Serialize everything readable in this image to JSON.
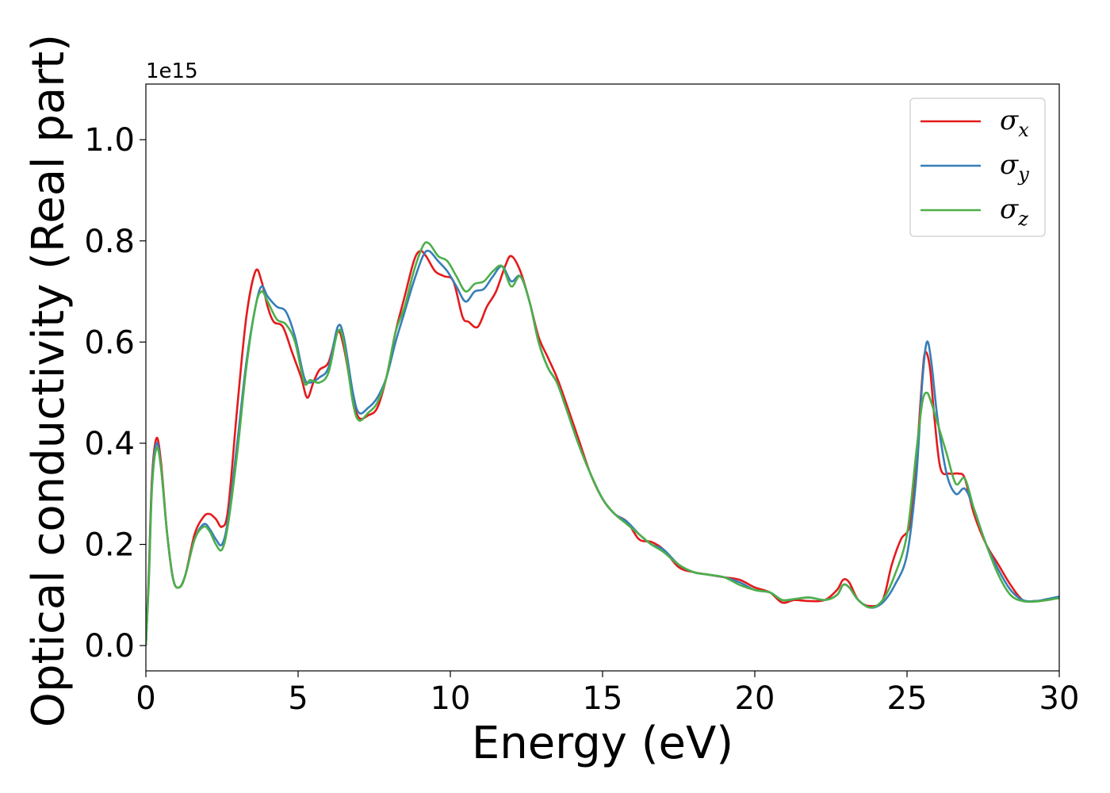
{
  "chart_data": {
    "type": "line",
    "xlabel": "Energy (eV)",
    "ylabel": "Optical conductivity (Real part)",
    "offset_text": "1e15",
    "xlim": [
      0,
      30
    ],
    "ylim": [
      -0.05,
      1.11
    ],
    "x_ticks": [
      0,
      5,
      10,
      15,
      20,
      25,
      30
    ],
    "y_ticks": [
      0.0,
      0.2,
      0.4,
      0.6,
      0.8,
      1.0
    ],
    "y_tick_labels": [
      "0.0",
      "0.2",
      "0.4",
      "0.6",
      "0.8",
      "1.0"
    ],
    "grid": false,
    "legend_position": "top-right",
    "series": [
      {
        "name": "σx",
        "label_base": "σ",
        "label_sub": "x",
        "color": "#e41a1c",
        "points": [
          [
            0,
            0.0
          ],
          [
            0.1,
            0.15
          ],
          [
            0.2,
            0.33
          ],
          [
            0.35,
            0.41
          ],
          [
            0.5,
            0.36
          ],
          [
            0.7,
            0.22
          ],
          [
            0.9,
            0.13
          ],
          [
            1.1,
            0.115
          ],
          [
            1.3,
            0.14
          ],
          [
            1.6,
            0.22
          ],
          [
            1.9,
            0.255
          ],
          [
            2.1,
            0.26
          ],
          [
            2.3,
            0.25
          ],
          [
            2.5,
            0.235
          ],
          [
            2.7,
            0.27
          ],
          [
            3.0,
            0.47
          ],
          [
            3.3,
            0.65
          ],
          [
            3.6,
            0.74
          ],
          [
            3.8,
            0.72
          ],
          [
            4.0,
            0.67
          ],
          [
            4.2,
            0.64
          ],
          [
            4.5,
            0.63
          ],
          [
            4.8,
            0.58
          ],
          [
            5.1,
            0.53
          ],
          [
            5.3,
            0.49
          ],
          [
            5.5,
            0.52
          ],
          [
            5.7,
            0.545
          ],
          [
            6.0,
            0.56
          ],
          [
            6.3,
            0.62
          ],
          [
            6.5,
            0.59
          ],
          [
            6.8,
            0.49
          ],
          [
            7.0,
            0.45
          ],
          [
            7.3,
            0.455
          ],
          [
            7.6,
            0.47
          ],
          [
            7.9,
            0.53
          ],
          [
            8.2,
            0.62
          ],
          [
            8.5,
            0.69
          ],
          [
            8.8,
            0.76
          ],
          [
            9.0,
            0.78
          ],
          [
            9.2,
            0.77
          ],
          [
            9.5,
            0.74
          ],
          [
            9.8,
            0.73
          ],
          [
            10.1,
            0.72
          ],
          [
            10.4,
            0.65
          ],
          [
            10.6,
            0.64
          ],
          [
            10.9,
            0.63
          ],
          [
            11.2,
            0.67
          ],
          [
            11.5,
            0.7
          ],
          [
            11.8,
            0.75
          ],
          [
            12.0,
            0.77
          ],
          [
            12.3,
            0.74
          ],
          [
            12.6,
            0.68
          ],
          [
            12.9,
            0.61
          ],
          [
            13.2,
            0.57
          ],
          [
            13.5,
            0.53
          ],
          [
            13.8,
            0.48
          ],
          [
            14.2,
            0.41
          ],
          [
            14.6,
            0.34
          ],
          [
            15.0,
            0.29
          ],
          [
            15.4,
            0.26
          ],
          [
            15.8,
            0.245
          ],
          [
            16.2,
            0.21
          ],
          [
            16.6,
            0.205
          ],
          [
            17.0,
            0.19
          ],
          [
            17.5,
            0.155
          ],
          [
            18.0,
            0.145
          ],
          [
            18.5,
            0.14
          ],
          [
            19.0,
            0.135
          ],
          [
            19.5,
            0.13
          ],
          [
            20.0,
            0.115
          ],
          [
            20.5,
            0.105
          ],
          [
            20.9,
            0.085
          ],
          [
            21.3,
            0.09
          ],
          [
            21.8,
            0.088
          ],
          [
            22.3,
            0.09
          ],
          [
            22.7,
            0.11
          ],
          [
            22.9,
            0.13
          ],
          [
            23.1,
            0.125
          ],
          [
            23.4,
            0.09
          ],
          [
            23.8,
            0.078
          ],
          [
            24.2,
            0.09
          ],
          [
            24.5,
            0.16
          ],
          [
            24.8,
            0.21
          ],
          [
            25.1,
            0.24
          ],
          [
            25.3,
            0.36
          ],
          [
            25.5,
            0.53
          ],
          [
            25.6,
            0.58
          ],
          [
            25.75,
            0.55
          ],
          [
            25.9,
            0.45
          ],
          [
            26.1,
            0.35
          ],
          [
            26.4,
            0.34
          ],
          [
            26.7,
            0.34
          ],
          [
            26.9,
            0.33
          ],
          [
            27.2,
            0.26
          ],
          [
            27.6,
            0.2
          ],
          [
            28.0,
            0.16
          ],
          [
            28.4,
            0.12
          ],
          [
            28.8,
            0.09
          ],
          [
            29.2,
            0.088
          ],
          [
            29.6,
            0.09
          ],
          [
            30.0,
            0.095
          ]
        ]
      },
      {
        "name": "σy",
        "label_base": "σ",
        "label_sub": "y",
        "color": "#377eb8",
        "points": [
          [
            0,
            0.0
          ],
          [
            0.1,
            0.14
          ],
          [
            0.2,
            0.32
          ],
          [
            0.35,
            0.4
          ],
          [
            0.5,
            0.35
          ],
          [
            0.7,
            0.22
          ],
          [
            0.9,
            0.13
          ],
          [
            1.1,
            0.115
          ],
          [
            1.3,
            0.14
          ],
          [
            1.6,
            0.21
          ],
          [
            1.9,
            0.24
          ],
          [
            2.1,
            0.23
          ],
          [
            2.3,
            0.21
          ],
          [
            2.5,
            0.2
          ],
          [
            2.7,
            0.25
          ],
          [
            3.0,
            0.4
          ],
          [
            3.3,
            0.56
          ],
          [
            3.6,
            0.67
          ],
          [
            3.8,
            0.71
          ],
          [
            4.0,
            0.69
          ],
          [
            4.3,
            0.67
          ],
          [
            4.6,
            0.66
          ],
          [
            4.9,
            0.61
          ],
          [
            5.2,
            0.53
          ],
          [
            5.4,
            0.52
          ],
          [
            5.7,
            0.53
          ],
          [
            6.0,
            0.55
          ],
          [
            6.3,
            0.63
          ],
          [
            6.5,
            0.61
          ],
          [
            6.8,
            0.5
          ],
          [
            7.0,
            0.46
          ],
          [
            7.3,
            0.47
          ],
          [
            7.6,
            0.49
          ],
          [
            7.9,
            0.53
          ],
          [
            8.2,
            0.6
          ],
          [
            8.5,
            0.66
          ],
          [
            8.8,
            0.72
          ],
          [
            9.1,
            0.77
          ],
          [
            9.3,
            0.78
          ],
          [
            9.6,
            0.76
          ],
          [
            9.9,
            0.74
          ],
          [
            10.2,
            0.71
          ],
          [
            10.5,
            0.68
          ],
          [
            10.8,
            0.7
          ],
          [
            11.1,
            0.705
          ],
          [
            11.4,
            0.73
          ],
          [
            11.7,
            0.75
          ],
          [
            12.0,
            0.72
          ],
          [
            12.3,
            0.73
          ],
          [
            12.6,
            0.68
          ],
          [
            12.9,
            0.6
          ],
          [
            13.2,
            0.55
          ],
          [
            13.5,
            0.52
          ],
          [
            13.8,
            0.47
          ],
          [
            14.2,
            0.4
          ],
          [
            14.6,
            0.34
          ],
          [
            15.0,
            0.29
          ],
          [
            15.4,
            0.26
          ],
          [
            15.8,
            0.245
          ],
          [
            16.2,
            0.22
          ],
          [
            16.6,
            0.2
          ],
          [
            17.0,
            0.19
          ],
          [
            17.5,
            0.16
          ],
          [
            18.0,
            0.145
          ],
          [
            18.5,
            0.14
          ],
          [
            19.0,
            0.135
          ],
          [
            19.5,
            0.125
          ],
          [
            20.0,
            0.11
          ],
          [
            20.5,
            0.105
          ],
          [
            20.9,
            0.09
          ],
          [
            21.3,
            0.092
          ],
          [
            21.8,
            0.095
          ],
          [
            22.3,
            0.09
          ],
          [
            22.7,
            0.1
          ],
          [
            22.9,
            0.12
          ],
          [
            23.1,
            0.115
          ],
          [
            23.4,
            0.09
          ],
          [
            23.8,
            0.075
          ],
          [
            24.2,
            0.085
          ],
          [
            24.6,
            0.12
          ],
          [
            25.0,
            0.18
          ],
          [
            25.3,
            0.33
          ],
          [
            25.5,
            0.52
          ],
          [
            25.65,
            0.6
          ],
          [
            25.8,
            0.56
          ],
          [
            26.0,
            0.45
          ],
          [
            26.3,
            0.34
          ],
          [
            26.6,
            0.3
          ],
          [
            26.9,
            0.31
          ],
          [
            27.2,
            0.27
          ],
          [
            27.6,
            0.2
          ],
          [
            28.0,
            0.15
          ],
          [
            28.4,
            0.11
          ],
          [
            28.8,
            0.09
          ],
          [
            29.2,
            0.088
          ],
          [
            29.6,
            0.092
          ],
          [
            30.0,
            0.097
          ]
        ]
      },
      {
        "name": "σz",
        "label_base": "σ",
        "label_sub": "z",
        "color": "#4daf4a",
        "points": [
          [
            0,
            0.0
          ],
          [
            0.1,
            0.13
          ],
          [
            0.2,
            0.31
          ],
          [
            0.35,
            0.39
          ],
          [
            0.5,
            0.35
          ],
          [
            0.7,
            0.22
          ],
          [
            0.9,
            0.13
          ],
          [
            1.1,
            0.115
          ],
          [
            1.3,
            0.14
          ],
          [
            1.6,
            0.21
          ],
          [
            1.9,
            0.235
          ],
          [
            2.1,
            0.225
          ],
          [
            2.3,
            0.2
          ],
          [
            2.5,
            0.19
          ],
          [
            2.7,
            0.24
          ],
          [
            3.0,
            0.38
          ],
          [
            3.3,
            0.55
          ],
          [
            3.6,
            0.67
          ],
          [
            3.8,
            0.7
          ],
          [
            4.0,
            0.68
          ],
          [
            4.3,
            0.645
          ],
          [
            4.6,
            0.635
          ],
          [
            4.9,
            0.6
          ],
          [
            5.2,
            0.52
          ],
          [
            5.4,
            0.525
          ],
          [
            5.7,
            0.52
          ],
          [
            6.0,
            0.54
          ],
          [
            6.3,
            0.62
          ],
          [
            6.5,
            0.6
          ],
          [
            6.8,
            0.48
          ],
          [
            7.0,
            0.445
          ],
          [
            7.3,
            0.46
          ],
          [
            7.6,
            0.48
          ],
          [
            7.9,
            0.53
          ],
          [
            8.2,
            0.62
          ],
          [
            8.5,
            0.67
          ],
          [
            8.8,
            0.74
          ],
          [
            9.1,
            0.79
          ],
          [
            9.3,
            0.795
          ],
          [
            9.6,
            0.77
          ],
          [
            9.9,
            0.76
          ],
          [
            10.2,
            0.73
          ],
          [
            10.5,
            0.7
          ],
          [
            10.8,
            0.715
          ],
          [
            11.1,
            0.72
          ],
          [
            11.4,
            0.74
          ],
          [
            11.7,
            0.75
          ],
          [
            12.0,
            0.71
          ],
          [
            12.3,
            0.73
          ],
          [
            12.6,
            0.68
          ],
          [
            12.9,
            0.6
          ],
          [
            13.2,
            0.55
          ],
          [
            13.5,
            0.52
          ],
          [
            13.8,
            0.47
          ],
          [
            14.2,
            0.4
          ],
          [
            14.6,
            0.34
          ],
          [
            15.0,
            0.29
          ],
          [
            15.4,
            0.26
          ],
          [
            15.8,
            0.24
          ],
          [
            16.2,
            0.22
          ],
          [
            16.6,
            0.2
          ],
          [
            17.0,
            0.185
          ],
          [
            17.5,
            0.16
          ],
          [
            18.0,
            0.145
          ],
          [
            18.5,
            0.14
          ],
          [
            19.0,
            0.135
          ],
          [
            19.5,
            0.12
          ],
          [
            20.0,
            0.11
          ],
          [
            20.5,
            0.105
          ],
          [
            20.9,
            0.09
          ],
          [
            21.3,
            0.092
          ],
          [
            21.8,
            0.095
          ],
          [
            22.3,
            0.09
          ],
          [
            22.7,
            0.1
          ],
          [
            22.9,
            0.12
          ],
          [
            23.1,
            0.115
          ],
          [
            23.4,
            0.09
          ],
          [
            23.8,
            0.075
          ],
          [
            24.2,
            0.09
          ],
          [
            24.6,
            0.14
          ],
          [
            25.0,
            0.22
          ],
          [
            25.3,
            0.38
          ],
          [
            25.5,
            0.48
          ],
          [
            25.65,
            0.5
          ],
          [
            25.8,
            0.48
          ],
          [
            26.0,
            0.44
          ],
          [
            26.3,
            0.38
          ],
          [
            26.6,
            0.32
          ],
          [
            26.9,
            0.33
          ],
          [
            27.2,
            0.27
          ],
          [
            27.6,
            0.2
          ],
          [
            28.0,
            0.14
          ],
          [
            28.4,
            0.1
          ],
          [
            28.8,
            0.088
          ],
          [
            29.2,
            0.087
          ],
          [
            29.6,
            0.09
          ],
          [
            30.0,
            0.094
          ]
        ]
      }
    ]
  }
}
